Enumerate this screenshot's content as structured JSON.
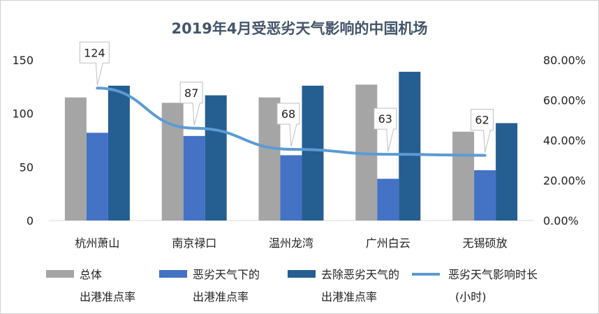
{
  "chart_data": {
    "type": "bar",
    "title": "2019年4月受恶劣天气影响的中国机场",
    "categories": [
      "杭州萧山",
      "南京禄口",
      "温州龙湾",
      "广州白云",
      "无锡硕放"
    ],
    "series": [
      {
        "name": "总体出港准点率",
        "kind": "bar",
        "color": "#a5a5a5",
        "values": [
          115,
          110,
          115,
          127,
          83
        ]
      },
      {
        "name": "恶劣天气下的出港准点率",
        "kind": "bar",
        "color": "#4472c4",
        "values": [
          82,
          79,
          61,
          39,
          47
        ]
      },
      {
        "name": "去除恶劣天气的出港准点率",
        "kind": "bar",
        "color": "#255e91",
        "values": [
          126,
          117,
          126,
          139,
          91
        ]
      },
      {
        "name": "恶劣天气影响时长(小时)",
        "kind": "line",
        "axis": "right",
        "color": "#5b9bd5",
        "values": [
          124,
          87,
          68,
          63,
          62
        ]
      }
    ],
    "left_axis": {
      "ylim": [
        0,
        150
      ],
      "ticks": [
        "0",
        "50",
        "100",
        "150"
      ]
    },
    "right_axis": {
      "ylim": [
        0,
        0.8
      ],
      "ticks": [
        "0.00%",
        "20.00%",
        "40.00%",
        "60.00%",
        "80.00%"
      ],
      "line_values_on_axis": [
        0.66,
        0.46,
        0.355,
        0.33,
        0.325
      ]
    },
    "legend": {
      "position": "bottom",
      "items": [
        {
          "line1": "总体",
          "line2": "出港准点率",
          "swatch": "bar",
          "color": "#a5a5a5"
        },
        {
          "line1": "恶劣天气下的",
          "line2": "出港准点率",
          "swatch": "bar",
          "color": "#4472c4"
        },
        {
          "line1": "去除恶劣天气的",
          "line2": "出港准点率",
          "swatch": "bar",
          "color": "#255e91"
        },
        {
          "line1": "恶劣天气影响时长",
          "line2": "(小时)",
          "swatch": "line",
          "color": "#5b9bd5"
        }
      ]
    },
    "grid": false
  }
}
